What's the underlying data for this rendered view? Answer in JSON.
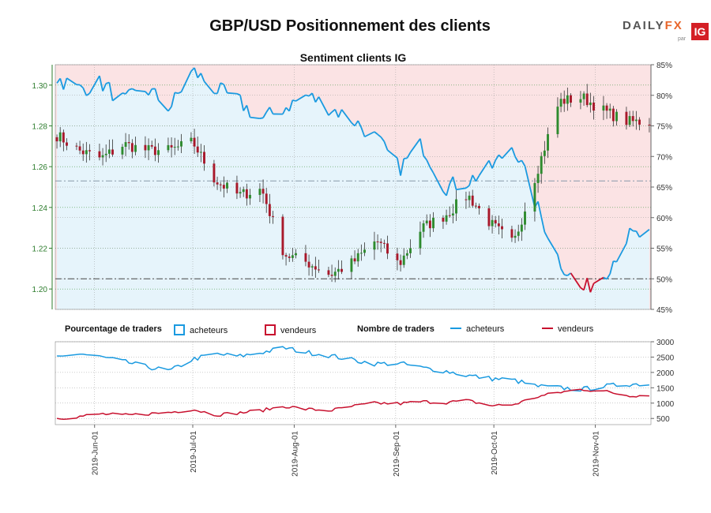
{
  "title": "GBP/USD Positionnement des clients",
  "subtitle": "Sentiment clients IG",
  "brand": {
    "part1": "DAILY",
    "part2": "FX",
    "par": "par",
    "ig": "IG"
  },
  "legend": {
    "pct_heading": "Pourcentage de traders",
    "pct_buyers": "acheteurs",
    "pct_sellers": "vendeurs",
    "count_heading": "Nombre de traders",
    "count_buyers": "acheteurs",
    "count_sellers": "vendeurs"
  },
  "colors": {
    "buyers": "#1a9ae0",
    "sellers": "#c8102e",
    "buyers_fill": "#e6f4fb",
    "sellers_fill": "#fbe3e4",
    "up_candle": "#2e8b2e",
    "down_candle": "#a8182a"
  },
  "chart_data": [
    {
      "type": "candlestick",
      "title": "Sentiment clients IG",
      "left_axis": {
        "label": "",
        "ticks": [
          1.2,
          1.22,
          1.24,
          1.26,
          1.28,
          1.3
        ],
        "range": [
          1.19,
          1.31
        ]
      },
      "right_axis": {
        "label": "",
        "ticks": [
          "45%",
          "50%",
          "55%",
          "60%",
          "65%",
          "70%",
          "75%",
          "80%",
          "85%"
        ],
        "range": [
          45,
          85
        ]
      },
      "reference_lines": [
        {
          "axis": "right",
          "value": 50,
          "style": "dash-dot"
        },
        {
          "axis": "left",
          "value": 1.253,
          "style": "dash-dot"
        }
      ],
      "x_dates": [
        "2019-05-20",
        "2019-05-27",
        "2019-06-03",
        "2019-06-10",
        "2019-06-17",
        "2019-06-24",
        "2019-07-01",
        "2019-07-08",
        "2019-07-15",
        "2019-07-22",
        "2019-07-29",
        "2019-08-05",
        "2019-08-12",
        "2019-08-19",
        "2019-08-26",
        "2019-09-02",
        "2019-09-09",
        "2019-09-16",
        "2019-09-23",
        "2019-09-30",
        "2019-10-07",
        "2019-10-14",
        "2019-10-21",
        "2019-10-28",
        "2019-11-04",
        "2019-11-11"
      ],
      "price_close": [
        1.276,
        1.268,
        1.264,
        1.271,
        1.268,
        1.268,
        1.272,
        1.253,
        1.246,
        1.249,
        1.217,
        1.213,
        1.207,
        1.213,
        1.224,
        1.212,
        1.23,
        1.236,
        1.246,
        1.232,
        1.222,
        1.257,
        1.292,
        1.294,
        1.287,
        1.282
      ],
      "buyers_pct": [
        83,
        81,
        82,
        79,
        81,
        78,
        84,
        81,
        79,
        76,
        78,
        80,
        78,
        76,
        73,
        68,
        72,
        65,
        66,
        68,
        72,
        62,
        53,
        48,
        51,
        57
      ]
    },
    {
      "type": "line",
      "title": "",
      "y_ticks": [
        500,
        1000,
        1500,
        2000,
        2500,
        3000
      ],
      "ylim": [
        300,
        3000
      ],
      "x_tick_labels": [
        "2019-Jun-01",
        "2019-Jul-01",
        "2019-Aug-01",
        "2019-Sep-01",
        "2019-Oct-01",
        "2019-Nov-01"
      ],
      "series": [
        {
          "name": "acheteurs",
          "values": [
            2450,
            2620,
            2500,
            2350,
            2180,
            2050,
            2430,
            2600,
            2520,
            2650,
            2800,
            2650,
            2550,
            2400,
            2280,
            2300,
            2150,
            2050,
            1900,
            1800,
            1750,
            1550,
            1500,
            1450,
            1550,
            1620
          ]
        },
        {
          "name": "vendeurs",
          "values": [
            500,
            560,
            650,
            600,
            650,
            700,
            800,
            620,
            680,
            760,
            900,
            800,
            760,
            900,
            1000,
            980,
            1050,
            1020,
            1080,
            920,
            950,
            1200,
            1350,
            1450,
            1380,
            1250
          ]
        }
      ]
    }
  ]
}
